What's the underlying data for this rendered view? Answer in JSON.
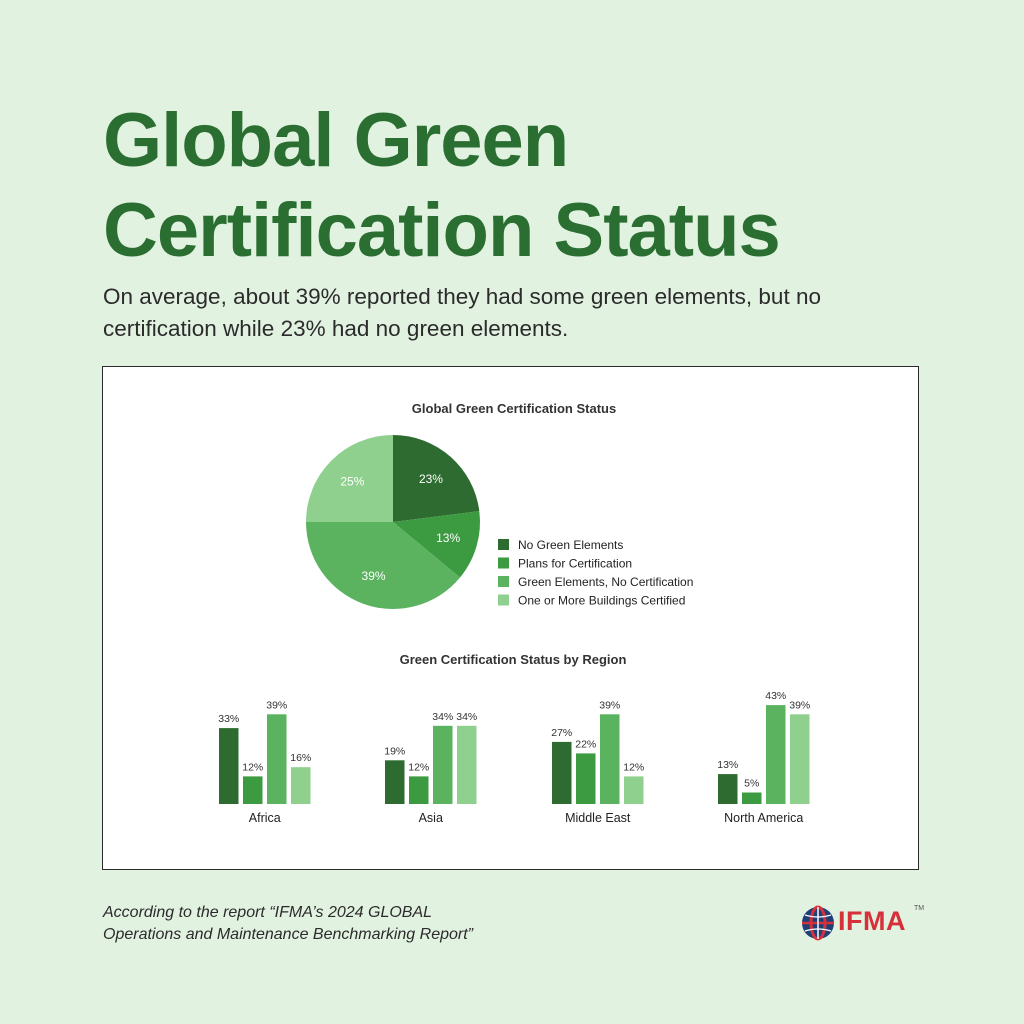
{
  "headline": {
    "line1": "Global Green",
    "line2": "Certification Status"
  },
  "subtitle": {
    "line1": "On average, about 39% reported they had some green elements, but no",
    "line2": "certification while 23% had no green elements."
  },
  "chart_data": [
    {
      "type": "pie",
      "title": "Global Green Certification Status",
      "categories": [
        "No Green Elements",
        "Plans for Certification",
        "Green Elements, No Certification",
        "One or More Buildings Certified"
      ],
      "values": [
        23,
        13,
        39,
        25
      ],
      "labels": [
        "23%",
        "13%",
        "39%",
        "25%"
      ],
      "colors": [
        "#2e6b30",
        "#3c9a40",
        "#5bb35f",
        "#8fd08e"
      ],
      "legend": "right"
    },
    {
      "type": "bar",
      "title": "Green Certification Status by Region",
      "categories": [
        "Africa",
        "Asia",
        "Middle East",
        "North America"
      ],
      "series": [
        {
          "name": "No Green Elements",
          "values": [
            33,
            19,
            27,
            13
          ],
          "labels": [
            "33%",
            "19%",
            "27%",
            "13%"
          ],
          "color": "#2e6b30"
        },
        {
          "name": "Plans for Certification",
          "values": [
            12,
            12,
            22,
            5
          ],
          "labels": [
            "12%",
            "12%",
            "22%",
            "5%"
          ],
          "color": "#3c9a40"
        },
        {
          "name": "Green Elements, No Certification",
          "values": [
            39,
            34,
            39,
            43
          ],
          "labels": [
            "39%",
            "34%",
            "39%",
            "43%"
          ],
          "color": "#5bb35f"
        },
        {
          "name": "One or More Buildings Certified",
          "values": [
            16,
            34,
            12,
            39
          ],
          "labels": [
            "16%",
            "34%",
            "12%",
            "39%"
          ],
          "color": "#8fd08e"
        }
      ],
      "grid": false
    }
  ],
  "footer": {
    "line1": "According to the report “IFMA’s 2024 GLOBAL",
    "line2": "Operations and Maintenance Benchmarking Report”"
  },
  "logo": {
    "text": "IFMA",
    "tm": "TM",
    "icon": "globe-icon",
    "color": "#d6303a"
  }
}
